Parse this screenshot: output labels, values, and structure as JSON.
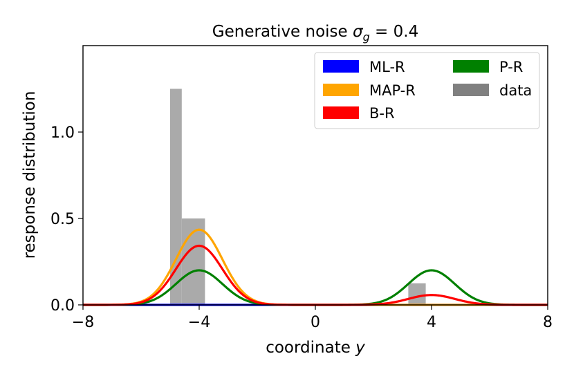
{
  "chart_data": {
    "type": "line",
    "title": "Generative noise σ_g = 0.4",
    "title_main": "Generative noise ",
    "title_sym": "σ",
    "title_sub": "g",
    "title_eq": " = 0.4",
    "xlabel_main": "coordinate ",
    "xlabel_var": "y",
    "ylabel": "response distribution",
    "xlim": [
      -8,
      8
    ],
    "ylim": [
      0,
      1.5
    ],
    "xticks": [
      -8,
      -4,
      0,
      4,
      8
    ],
    "xtick_labels": [
      "−8",
      "−4",
      "0",
      "4",
      "8"
    ],
    "yticks": [
      0.0,
      0.5,
      1.0
    ],
    "ytick_labels": [
      "0.0",
      "0.5",
      "1.0"
    ],
    "grid": false,
    "legend_position": "top-right",
    "histogram": {
      "name": "data",
      "color": "#aaaaaa",
      "legend_color": "#808080",
      "bins": [
        {
          "x0": -5.0,
          "x1": -4.6,
          "value": 1.25
        },
        {
          "x0": -4.6,
          "x1": -3.8,
          "value": 0.5
        },
        {
          "x0": 3.2,
          "x1": 3.8,
          "value": 0.125
        }
      ]
    },
    "series": [
      {
        "name": "ML-R",
        "color": "#0000ff",
        "components": []
      },
      {
        "name": "MAP-R",
        "color": "#ffa500",
        "components": [
          {
            "mu": -4,
            "sigma": 0.8,
            "amp": 0.435
          }
        ]
      },
      {
        "name": "P-R",
        "color": "#008000",
        "components": [
          {
            "mu": -4,
            "sigma": 0.8,
            "amp": 0.2
          },
          {
            "mu": 4,
            "sigma": 0.8,
            "amp": 0.2
          }
        ]
      },
      {
        "name": "B-R",
        "color": "#ff0000",
        "components": [
          {
            "mu": -4,
            "sigma": 0.8,
            "amp": 0.342
          },
          {
            "mu": 4,
            "sigma": 0.8,
            "amp": 0.057
          }
        ]
      }
    ],
    "legend": {
      "columns": [
        [
          "ML-R",
          "MAP-R",
          "B-R"
        ],
        [
          "P-R",
          "data"
        ]
      ]
    }
  }
}
